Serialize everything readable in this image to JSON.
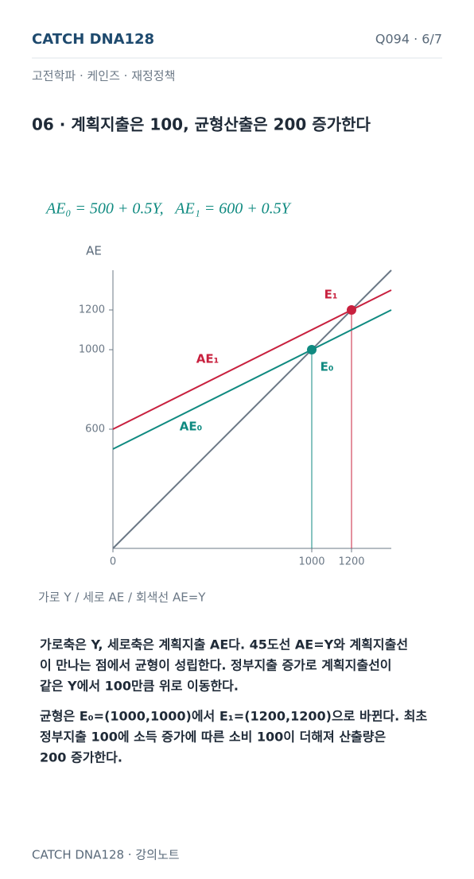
{
  "header": {
    "brand": "CATCH DNA128",
    "page": "Q094 · 6/7"
  },
  "breadcrumb": "고전학파 · 케인즈 · 재정정책",
  "title": "06 · 계획지출은 100, 균형산출은 200 증가한다",
  "formula": "AE₀ = 500 + 0.5Y,   AE₁ = 600 + 0.5Y",
  "chart_data": {
    "type": "line",
    "ylabel": "AE",
    "x": [
      0,
      1400
    ],
    "series": [
      {
        "name": "AE₀",
        "color": "#0f8a80",
        "values": [
          500,
          1200
        ]
      },
      {
        "name": "AE₁",
        "color": "#c8203e",
        "values": [
          600,
          1300
        ]
      },
      {
        "color": "#6b7886",
        "values": [
          0,
          1400
        ]
      }
    ],
    "points": [
      {
        "label": "E₀",
        "x": 1000,
        "y": 1000,
        "color": "#0f8a80"
      },
      {
        "label": "E₁",
        "x": 1200,
        "y": 1200,
        "color": "#c8203e"
      }
    ],
    "xlim": [
      0,
      1400
    ],
    "ylim": [
      0,
      1400
    ],
    "xticks": [
      0,
      1000,
      1200
    ],
    "yticks": [
      600,
      1000,
      1200
    ]
  },
  "caption": "가로 Y / 세로 AE / 회색선 AE=Y",
  "body": [
    [
      "가로축은 Y, 세로축은 계획지출 AE다. 45도선 AE=Y와 계획지출선",
      "이 만나는 점에서 균형이 성립한다. 정부지출 증가로 계획지출선이",
      "같은 Y에서 100만큼 위로 이동한다."
    ],
    [
      "균형은 E₀=(1000,1000)에서 E₁=(1200,1200)으로 바뀐다. 최초",
      "정부지출 100에 소득 증가에 따른 소비 100이 더해져 산출량은",
      "200 증가한다."
    ]
  ],
  "footer": "CATCH DNA128 · 강의노트"
}
